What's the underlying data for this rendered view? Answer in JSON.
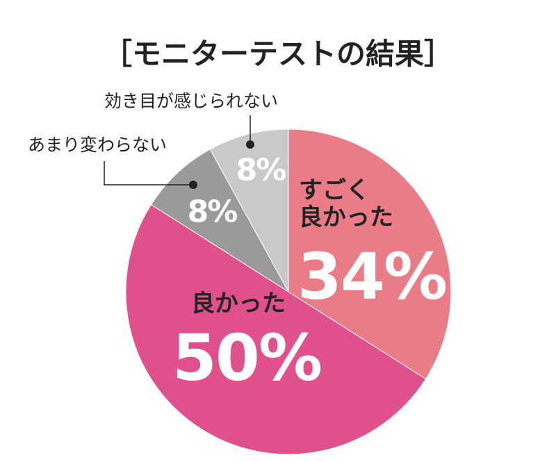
{
  "chart_data": {
    "type": "pie",
    "title": "［モニターテストの結果］",
    "categories": [
      "すごく\n良かった",
      "良かった",
      "あまり変わらない",
      "効き目が感じられない"
    ],
    "values": [
      34,
      50,
      8,
      8
    ],
    "value_labels": [
      "34%",
      "50%",
      "8%",
      "8%"
    ],
    "colors": [
      "#e97c86",
      "#e0508c",
      "#9a9a9a",
      "#c9c9c9"
    ]
  }
}
